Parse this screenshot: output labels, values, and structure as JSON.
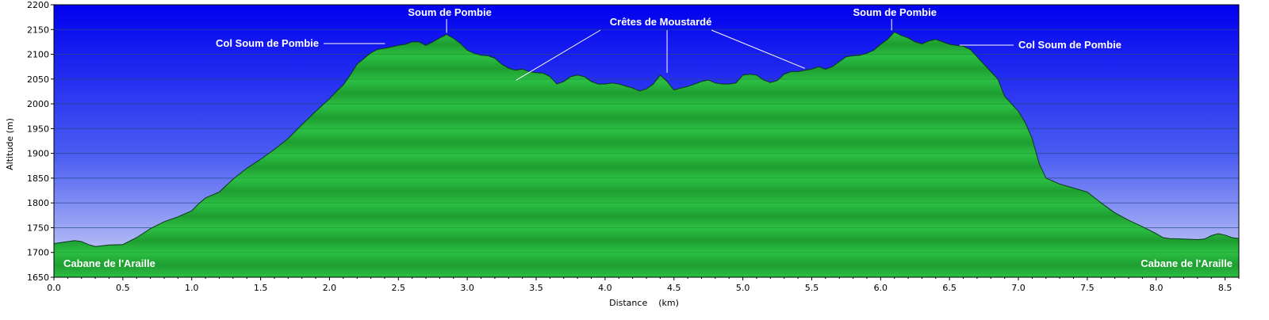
{
  "chart_data": {
    "type": "area",
    "xlabel": "Distance    (km)",
    "ylabel": "Altitude (m)",
    "xlim": [
      0,
      8.6
    ],
    "ylim": [
      1650,
      2200
    ],
    "x_ticks": [
      0,
      0.5,
      1,
      1.5,
      2,
      2.5,
      3,
      3.5,
      4,
      4.5,
      5,
      5.5,
      6,
      6.5,
      7,
      7.5,
      8,
      8.5
    ],
    "x_tick_labels": [
      "0.0",
      "0.5",
      "1.0",
      "1.5",
      "2.0",
      "2.5",
      "3.0",
      "3.5",
      "4.0",
      "4.5",
      "5.0",
      "5.5",
      "6.0",
      "6.5",
      "7.0",
      "7.5",
      "8.0",
      "8.5"
    ],
    "y_ticks": [
      1650,
      1700,
      1750,
      1800,
      1850,
      1900,
      1950,
      2000,
      2050,
      2100,
      2150,
      2200
    ],
    "y_tick_labels": [
      "1650",
      "1700",
      "1750",
      "1800",
      "1850",
      "1900",
      "1950",
      "2000",
      "2050",
      "2100",
      "2150",
      "2200"
    ],
    "grid": true,
    "colors": {
      "sky_top": "#0000ee",
      "sky_bottom": "#c8ccf4",
      "ground_light": "#2fbf45",
      "ground_dark": "#189a2c",
      "outline": "#0a3a14"
    },
    "x": [
      0,
      0.05,
      0.1,
      0.15,
      0.2,
      0.25,
      0.3,
      0.4,
      0.5,
      0.6,
      0.7,
      0.8,
      0.9,
      1.0,
      1.05,
      1.1,
      1.2,
      1.3,
      1.4,
      1.5,
      1.6,
      1.7,
      1.8,
      1.9,
      2.0,
      2.05,
      2.1,
      2.15,
      2.2,
      2.3,
      2.35,
      2.4,
      2.45,
      2.5,
      2.55,
      2.6,
      2.65,
      2.7,
      2.75,
      2.8,
      2.85,
      2.9,
      2.95,
      3.0,
      3.05,
      3.1,
      3.15,
      3.2,
      3.25,
      3.3,
      3.35,
      3.4,
      3.45,
      3.5,
      3.55,
      3.6,
      3.65,
      3.7,
      3.75,
      3.8,
      3.85,
      3.9,
      3.95,
      4.0,
      4.05,
      4.1,
      4.15,
      4.2,
      4.25,
      4.3,
      4.35,
      4.4,
      4.45,
      4.5,
      4.55,
      4.6,
      4.65,
      4.7,
      4.75,
      4.8,
      4.85,
      4.9,
      4.95,
      5.0,
      5.05,
      5.1,
      5.15,
      5.2,
      5.25,
      5.3,
      5.35,
      5.4,
      5.45,
      5.5,
      5.55,
      5.6,
      5.65,
      5.7,
      5.75,
      5.8,
      5.85,
      5.9,
      5.95,
      6.0,
      6.05,
      6.1,
      6.15,
      6.2,
      6.25,
      6.3,
      6.35,
      6.4,
      6.45,
      6.5,
      6.55,
      6.6,
      6.65,
      6.7,
      6.75,
      6.8,
      6.85,
      6.9,
      6.95,
      7.0,
      7.05,
      7.1,
      7.15,
      7.2,
      7.3,
      7.4,
      7.5,
      7.6,
      7.7,
      7.8,
      7.9,
      8.0,
      8.05,
      8.1,
      8.2,
      8.3,
      8.35,
      8.4,
      8.45,
      8.5,
      8.55,
      8.6
    ],
    "values": [
      1718,
      1720,
      1722,
      1724,
      1722,
      1716,
      1712,
      1715,
      1716,
      1730,
      1748,
      1762,
      1772,
      1784,
      1798,
      1810,
      1822,
      1848,
      1870,
      1888,
      1908,
      1930,
      1958,
      1985,
      2010,
      2025,
      2038,
      2058,
      2080,
      2103,
      2110,
      2112,
      2115,
      2118,
      2120,
      2125,
      2125,
      2118,
      2125,
      2133,
      2140,
      2132,
      2122,
      2108,
      2102,
      2098,
      2097,
      2092,
      2080,
      2072,
      2068,
      2070,
      2065,
      2063,
      2062,
      2055,
      2040,
      2045,
      2055,
      2058,
      2055,
      2045,
      2040,
      2040,
      2042,
      2040,
      2036,
      2032,
      2026,
      2030,
      2040,
      2058,
      2045,
      2028,
      2032,
      2035,
      2040,
      2045,
      2048,
      2042,
      2040,
      2040,
      2042,
      2058,
      2060,
      2058,
      2048,
      2043,
      2047,
      2060,
      2065,
      2065,
      2068,
      2070,
      2075,
      2070,
      2075,
      2085,
      2095,
      2097,
      2098,
      2102,
      2108,
      2120,
      2130,
      2145,
      2138,
      2133,
      2125,
      2121,
      2127,
      2130,
      2125,
      2120,
      2118,
      2116,
      2110,
      2095,
      2080,
      2065,
      2050,
      2015,
      2000,
      1985,
      1962,
      1930,
      1880,
      1850,
      1838,
      1830,
      1822,
      1800,
      1780,
      1765,
      1752,
      1738,
      1730,
      1728,
      1727,
      1726,
      1727,
      1734,
      1738,
      1735,
      1730,
      1728
    ],
    "annotations": [
      {
        "label": "Soum de Pombie",
        "x": 2.85,
        "y": 2140
      },
      {
        "label": "Col Soum de Pombie",
        "x": 2.38,
        "y": 2112
      },
      {
        "label": "Crêtes de Moustardé",
        "x": 3.4,
        "y": 2070
      },
      {
        "label": "Soum de Pombie",
        "x": 6.08,
        "y": 2145
      },
      {
        "label": "Col Soum de Pombie",
        "x": 6.55,
        "y": 2113
      },
      {
        "label": "Cabane de l'Araille",
        "x": 0,
        "y": 1718
      },
      {
        "label": "Cabane de l'Araille",
        "x": 8.6,
        "y": 1728
      }
    ]
  }
}
